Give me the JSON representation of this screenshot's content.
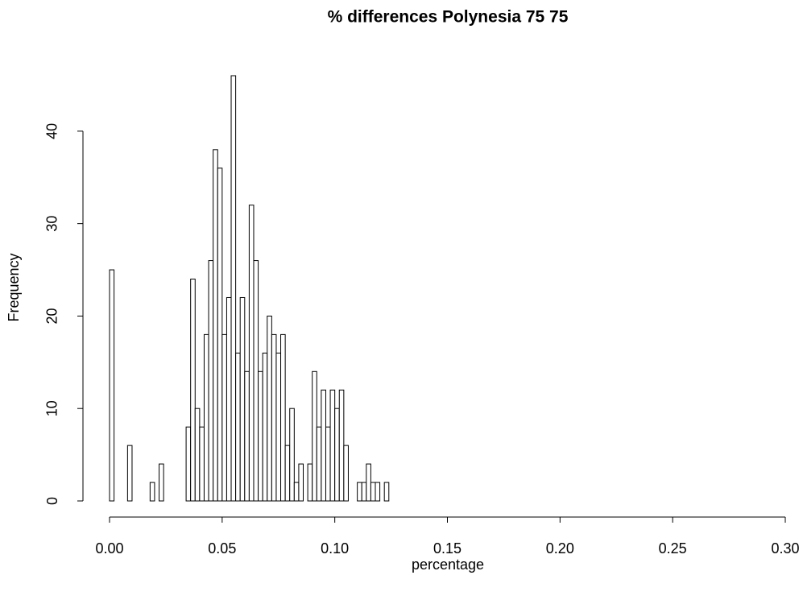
{
  "chart_data": {
    "type": "histogram",
    "title": "% differences Polynesia 75 75",
    "x_label": "percentage",
    "y_label": "Frequency",
    "bins": [
      0,
      0.002,
      0.004,
      0.006,
      0.008,
      0.01,
      0.012,
      0.014,
      0.016,
      0.018,
      0.02,
      0.022,
      0.024,
      0.026,
      0.028,
      0.03,
      0.032,
      0.034,
      0.036,
      0.038,
      0.04,
      0.042,
      0.044,
      0.046,
      0.048,
      0.05,
      0.052,
      0.054,
      0.056,
      0.058,
      0.06,
      0.062,
      0.064,
      0.066,
      0.068,
      0.07,
      0.072,
      0.074,
      0.076,
      0.078,
      0.08,
      0.082,
      0.084,
      0.086,
      0.088,
      0.09,
      0.092,
      0.094,
      0.096,
      0.098,
      0.1,
      0.102,
      0.104,
      0.106,
      0.108,
      0.11,
      0.112,
      0.114,
      0.116,
      0.118,
      0.12,
      0.122,
      0.124
    ],
    "values": [
      25,
      0,
      0,
      0,
      6,
      0,
      0,
      0,
      0,
      2,
      0,
      4,
      0,
      0,
      0,
      0,
      0,
      8,
      24,
      10,
      8,
      18,
      26,
      38,
      36,
      18,
      22,
      46,
      16,
      22,
      14,
      32,
      26,
      14,
      16,
      20,
      18,
      16,
      18,
      6,
      10,
      2,
      4,
      0,
      4,
      14,
      8,
      12,
      8,
      12,
      10,
      12,
      6,
      0,
      0,
      2,
      2,
      4,
      2,
      2,
      0,
      2
    ],
    "color": "#ffffff",
    "edge_color": "#000000",
    "xlim": [
      0,
      0.3
    ],
    "xticks": [
      {
        "value": 0,
        "label": "0.00"
      },
      {
        "value": 0.05,
        "label": "0.05"
      },
      {
        "value": 0.1,
        "label": "0.10"
      },
      {
        "value": 0.15,
        "label": "0.15"
      },
      {
        "value": 0.2,
        "label": "0.20"
      },
      {
        "value": 0.25,
        "label": "0.25"
      },
      {
        "value": 0.3,
        "label": "0.30"
      }
    ],
    "ylim": [
      0,
      46
    ],
    "yticks": [
      0,
      10,
      20,
      30,
      40
    ]
  }
}
